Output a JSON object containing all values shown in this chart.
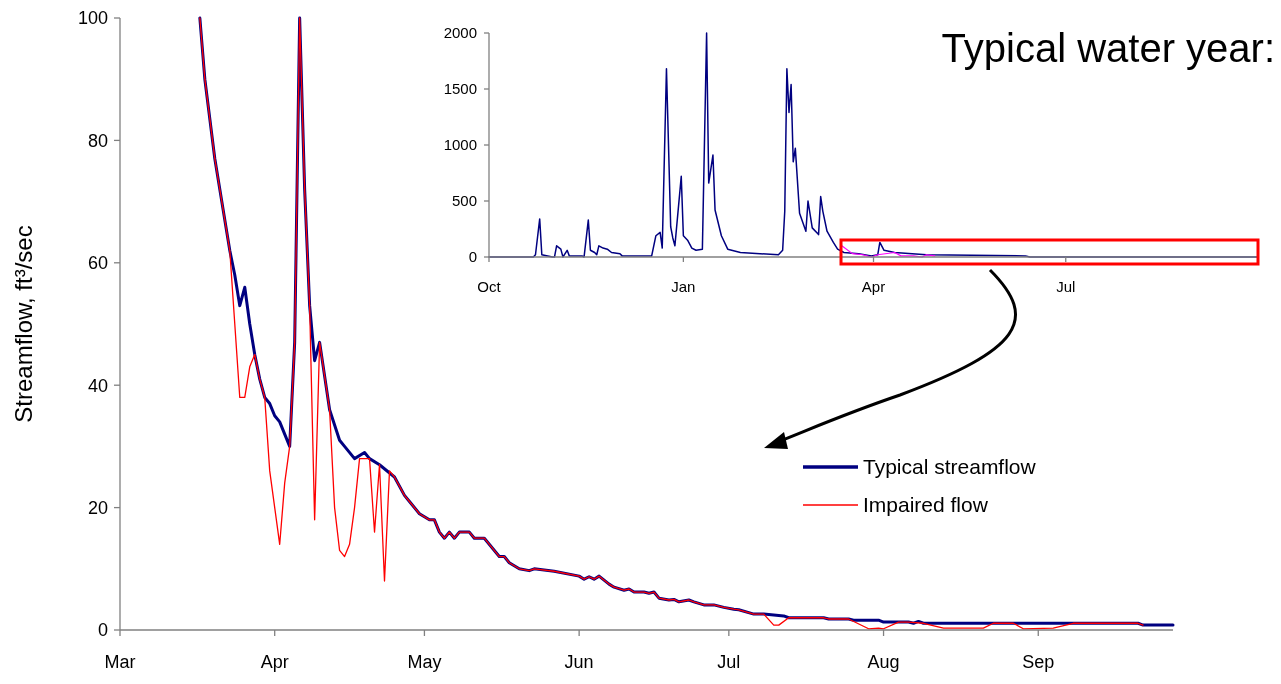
{
  "chart_data": [
    {
      "type": "line",
      "title": "Typical water year:",
      "ylabel": "Streamflow, ft³/sec",
      "xlim": [
        "--03-01",
        "--09-28"
      ],
      "ylim": [
        0,
        100
      ],
      "yticks": [
        0,
        20,
        40,
        60,
        80,
        100
      ],
      "xticks": [
        {
          "value": "--03-01",
          "label": "Mar"
        },
        {
          "value": "--04-01",
          "label": "Apr"
        },
        {
          "value": "--05-01",
          "label": "May"
        },
        {
          "value": "--06-01",
          "label": "Jun"
        },
        {
          "value": "--07-01",
          "label": "Jul"
        },
        {
          "value": "--08-01",
          "label": "Aug"
        },
        {
          "value": "--09-01",
          "label": "Sep"
        }
      ],
      "legend": "bottom right",
      "series": [
        {
          "name": "Typical streamflow",
          "color": "#000080",
          "x": [
            "--03-17",
            "--03-18",
            "--03-20",
            "--03-22",
            "--03-23",
            "--03-24",
            "--03-25",
            "--03-26",
            "--03-27",
            "--03-28",
            "--03-29",
            "--03-30",
            "--03-31",
            "--04-01",
            "--04-02",
            "--04-04",
            "--04-05",
            "--04-06",
            "--04-07",
            "--04-08",
            "--04-09",
            "--04-10",
            "--04-12",
            "--04-14",
            "--04-15",
            "--04-17",
            "--04-19",
            "--04-20",
            "--04-22",
            "--04-25",
            "--04-27",
            "--04-28",
            "--04-30",
            "--05-02",
            "--05-03",
            "--05-04",
            "--05-05",
            "--05-06",
            "--05-07",
            "--05-08",
            "--05-10",
            "--05-11",
            "--05-13",
            "--05-16",
            "--05-17",
            "--05-18",
            "--05-20",
            "--05-22",
            "--05-23",
            "--05-27",
            "--06-01",
            "--06-02",
            "--06-03",
            "--06-04",
            "--06-05",
            "--06-07",
            "--06-08",
            "--06-10",
            "--06-11",
            "--06-12",
            "--06-14",
            "--06-15",
            "--06-16",
            "--06-17",
            "--06-19",
            "--06-20",
            "--06-21",
            "--06-23",
            "--06-24",
            "--06-26",
            "--06-28",
            "--06-30",
            "--07-02",
            "--07-03",
            "--07-06",
            "--07-08",
            "--07-12",
            "--07-13",
            "--07-20",
            "--07-21",
            "--07-25",
            "--07-26",
            "--07-31",
            "--08-01",
            "--08-06",
            "--08-07",
            "--08-08",
            "--08-09",
            "--09-21",
            "--09-22",
            "--09-28"
          ],
          "values": [
            100,
            90,
            77,
            67,
            62,
            58,
            53,
            56,
            50,
            45,
            41,
            38,
            37,
            35,
            34,
            30,
            47,
            100,
            72,
            53,
            44,
            47,
            36,
            31,
            30,
            28,
            29,
            28,
            27,
            25,
            22,
            21,
            19,
            18,
            18,
            16,
            15,
            16,
            15,
            16,
            16,
            15,
            15,
            12,
            12,
            11,
            10,
            9.7,
            10,
            9.6,
            8.8,
            8.3,
            8.7,
            8.3,
            8.8,
            7.5,
            7,
            6.5,
            6.7,
            6.2,
            6.2,
            6,
            6.2,
            5.2,
            4.9,
            5,
            4.6,
            4.9,
            4.6,
            4.1,
            4.1,
            3.7,
            3.4,
            3.3,
            2.6,
            2.6,
            2.3,
            2,
            2,
            1.8,
            1.8,
            1.6,
            1.6,
            1.3,
            1.3,
            1.1,
            1.4,
            1.1,
            1.1,
            0.8,
            0.8
          ]
        },
        {
          "name": "Impaired flow",
          "color": "#ff0000",
          "x": [
            "--03-17",
            "--03-18",
            "--03-20",
            "--03-22",
            "--03-23",
            "--03-25",
            "--03-26",
            "--03-27",
            "--03-28",
            "--03-29",
            "--03-30",
            "--03-31",
            "--04-01",
            "--04-02",
            "--04-03",
            "--04-04",
            "--04-05",
            "--04-06",
            "--04-07",
            "--04-08",
            "--04-09",
            "--04-10",
            "--04-12",
            "--04-13",
            "--04-14",
            "--04-15",
            "--04-16",
            "--04-17",
            "--04-18",
            "--04-20",
            "--04-21",
            "--04-22",
            "--04-23",
            "--04-24",
            "--04-25",
            "--04-27",
            "--04-28",
            "--04-30",
            "--05-02",
            "--05-03",
            "--05-04",
            "--05-05",
            "--05-06",
            "--05-07",
            "--05-08",
            "--05-10",
            "--05-11",
            "--05-13",
            "--05-16",
            "--05-17",
            "--05-18",
            "--05-20",
            "--05-22",
            "--05-23",
            "--05-27",
            "--06-01",
            "--06-02",
            "--06-03",
            "--06-04",
            "--06-05",
            "--06-07",
            "--06-08",
            "--06-10",
            "--06-11",
            "--06-12",
            "--06-14",
            "--06-15",
            "--06-16",
            "--06-17",
            "--06-19",
            "--06-20",
            "--06-21",
            "--06-23",
            "--06-24",
            "--06-26",
            "--06-28",
            "--06-30",
            "--07-02",
            "--07-03",
            "--07-06",
            "--07-08",
            "--07-10",
            "--07-11",
            "--07-13",
            "--07-20",
            "--07-21",
            "--07-25",
            "--07-29",
            "--07-31",
            "--08-01",
            "--08-04",
            "--08-06",
            "--08-09",
            "--08-13",
            "--08-21",
            "--08-23",
            "--08-27",
            "--08-29",
            "--09-04",
            "--09-08",
            "--09-21",
            "--09-22"
          ],
          "values": [
            100,
            90,
            77,
            67,
            62,
            38,
            38,
            43,
            45,
            41,
            38,
            26,
            20,
            14,
            24,
            30,
            47,
            100,
            72,
            53,
            18,
            47,
            36,
            20,
            13,
            12,
            14,
            20,
            28,
            28,
            16,
            27,
            8,
            26,
            25,
            22,
            21,
            19,
            18,
            18,
            16,
            15,
            16,
            15,
            16,
            16,
            15,
            15,
            12,
            12,
            11,
            10,
            9.7,
            10,
            9.6,
            8.8,
            8.3,
            8.7,
            8.3,
            8.8,
            7.5,
            7,
            6.5,
            6.7,
            6.2,
            6.2,
            6,
            6.2,
            5.2,
            4.9,
            5,
            4.6,
            4.9,
            4.6,
            4.1,
            4.1,
            3.7,
            3.4,
            3.3,
            2.6,
            2.6,
            0.8,
            0.8,
            2,
            2,
            1.8,
            1.8,
            0.2,
            0.3,
            0.2,
            1.3,
            1.3,
            1.1,
            0.3,
            0.3,
            1.1,
            1.1,
            0.2,
            0.3,
            1.1,
            1.1,
            0.8
          ]
        }
      ]
    },
    {
      "type": "line",
      "xlim": [
        "2000-10-01",
        "2001-09-30"
      ],
      "ylim": [
        0,
        2000
      ],
      "yticks": [
        0,
        500,
        1000,
        1500,
        2000
      ],
      "xticks": [
        {
          "value": "2000-10-01",
          "label": "Oct"
        },
        {
          "value": "2001-01-01",
          "label": "Jan"
        },
        {
          "value": "2001-04-01",
          "label": "Apr"
        },
        {
          "value": "2001-07-01",
          "label": "Jul"
        }
      ],
      "series": [
        {
          "color": "#000080",
          "x": [
            "2000-10-01",
            "2000-10-22",
            "2000-10-23",
            "2000-10-25",
            "2000-10-26",
            "2000-10-31",
            "2000-11-01",
            "2000-11-02",
            "2000-11-04",
            "2000-11-05",
            "2000-11-07",
            "2000-11-08",
            "2000-11-14",
            "2000-11-15",
            "2000-11-17",
            "2000-11-18",
            "2000-11-20",
            "2000-11-21",
            "2000-11-22",
            "2000-11-24",
            "2000-11-26",
            "2000-11-28",
            "2000-12-02",
            "2000-12-03",
            "2000-12-17",
            "2000-12-19",
            "2000-12-21",
            "2000-12-22",
            "2000-12-24",
            "2000-12-26",
            "2000-12-27",
            "2000-12-28",
            "2000-12-31",
            "2001-01-01",
            "2001-01-03",
            "2001-01-05",
            "2001-01-07",
            "2001-01-10",
            "2001-01-12",
            "2001-01-13",
            "2001-01-15",
            "2001-01-16",
            "2001-01-19",
            "2001-01-22",
            "2001-01-28",
            "2001-02-15",
            "2001-02-17",
            "2001-02-18",
            "2001-02-19",
            "2001-02-20",
            "2001-02-21",
            "2001-02-22",
            "2001-02-23",
            "2001-02-25",
            "2001-02-28",
            "2001-03-01",
            "2001-03-03",
            "2001-03-06",
            "2001-03-07",
            "2001-03-08",
            "2001-03-10",
            "2001-03-13",
            "2001-03-15",
            "2001-03-18",
            "2001-03-25",
            "2001-03-31",
            "2001-04-03",
            "2001-04-04",
            "2001-04-06",
            "2001-04-11",
            "2001-04-26",
            "2001-06-12",
            "2001-06-14",
            "2001-09-30"
          ],
          "values": [
            0,
            0,
            20,
            340,
            20,
            0,
            0,
            100,
            70,
            0,
            60,
            10,
            10,
            0,
            330,
            60,
            40,
            20,
            100,
            80,
            70,
            40,
            30,
            10,
            10,
            190,
            220,
            80,
            1680,
            270,
            170,
            100,
            720,
            190,
            150,
            80,
            60,
            70,
            2000,
            660,
            910,
            420,
            190,
            70,
            40,
            20,
            60,
            410,
            1680,
            1290,
            1540,
            850,
            970,
            390,
            230,
            500,
            260,
            200,
            540,
            410,
            230,
            130,
            70,
            40,
            30,
            10,
            20,
            130,
            60,
            40,
            20,
            10,
            0,
            0
          ]
        },
        {
          "color": "#ff00ff",
          "x": [
            "2001-03-17",
            "2001-03-22",
            "2001-03-27",
            "2001-03-31",
            "2001-04-03",
            "2001-04-11",
            "2001-04-14",
            "2001-04-20",
            "2001-04-24",
            "2001-04-26",
            "2001-04-30"
          ],
          "values": [
            100,
            30,
            20,
            0,
            20,
            40,
            10,
            10,
            0,
            20,
            10
          ]
        }
      ]
    }
  ]
}
